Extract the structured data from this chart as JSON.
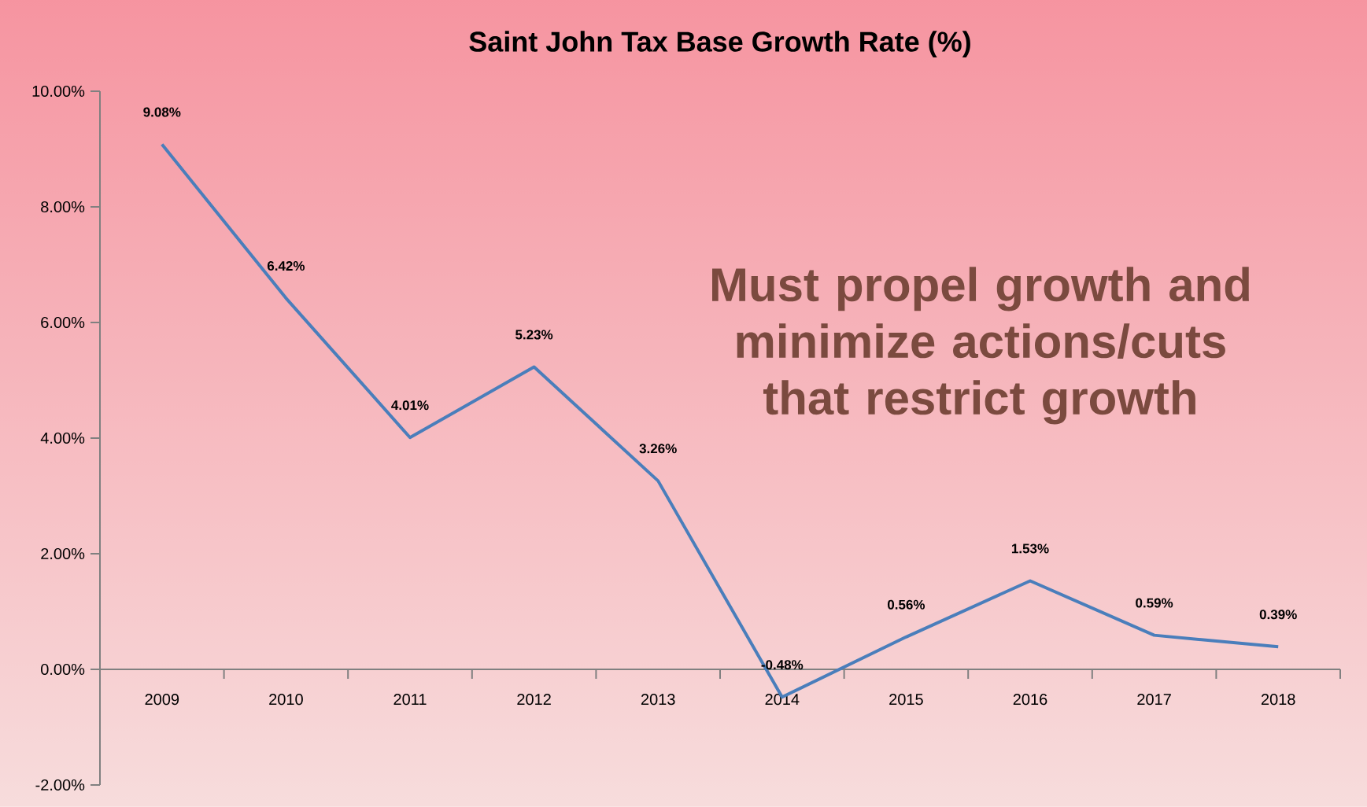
{
  "chart_data": {
    "type": "line",
    "title": "Saint John Tax Base Growth Rate (%)",
    "categories": [
      "2009",
      "2010",
      "2011",
      "2012",
      "2013",
      "2014",
      "2015",
      "2016",
      "2017",
      "2018"
    ],
    "series": [
      {
        "color": "#4a7ebb",
        "values": [
          9.08,
          6.42,
          4.01,
          5.23,
          3.26,
          -0.48,
          0.56,
          1.53,
          0.59,
          0.39
        ],
        "value_labels": [
          "9.08%",
          "6.42%",
          "4.01%",
          "5.23%",
          "3.26%",
          "-0.48%",
          "0.56%",
          "1.53%",
          "0.59%",
          "0.39%"
        ]
      }
    ],
    "ylim": [
      -2,
      10
    ],
    "yticks": [
      {
        "value": -2,
        "label": "-2.00%"
      },
      {
        "value": 0,
        "label": "0.00%"
      },
      {
        "value": 2,
        "label": "2.00%"
      },
      {
        "value": 4,
        "label": "4.00%"
      },
      {
        "value": 6,
        "label": "6.00%"
      },
      {
        "value": 8,
        "label": "8.00%"
      },
      {
        "value": 10,
        "label": "10.00%"
      }
    ],
    "annotations": [
      "Must propel growth and minimize actions/cuts that restrict growth"
    ]
  }
}
